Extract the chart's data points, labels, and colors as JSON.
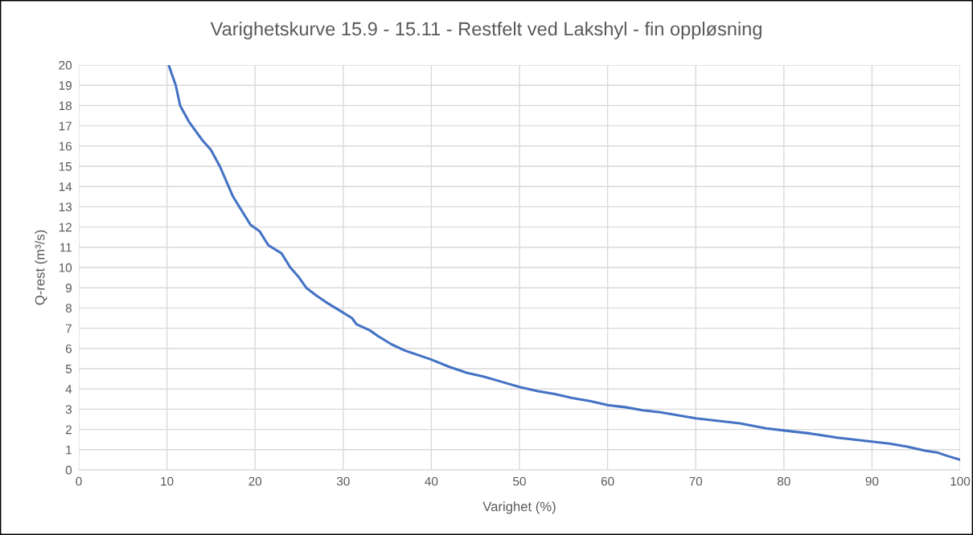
{
  "chart_data": {
    "type": "line",
    "title": "Varighetskurve 15.9 - 15.11 - Restfelt ved Lakshyl - fin oppløsning",
    "xlabel": "Varighet (%)",
    "ylabel": "Q-rest (m³/s)",
    "x": [
      10.2,
      11,
      11.5,
      12.5,
      14,
      15,
      16,
      17,
      17.5,
      18.5,
      19.5,
      20.5,
      21.5,
      23,
      24,
      25,
      25.8,
      27,
      28,
      29.5,
      31,
      31.5,
      33,
      34,
      35.5,
      37,
      39,
      40,
      42,
      44,
      46,
      48,
      50,
      52,
      54,
      56,
      58,
      60,
      62,
      64,
      66,
      68,
      70,
      72,
      75,
      78,
      80,
      83,
      86,
      88,
      90,
      92,
      94,
      95,
      96,
      97.5,
      98.5,
      100
    ],
    "series": [
      {
        "color": "#4472c4",
        "values": [
          20,
          19,
          18,
          17.2,
          16.3,
          15.8,
          15,
          14,
          13.5,
          12.8,
          12.1,
          11.8,
          11.1,
          10.7,
          10,
          9.5,
          9,
          8.6,
          8.3,
          7.9,
          7.5,
          7.2,
          6.9,
          6.6,
          6.2,
          5.9,
          5.6,
          5.45,
          5.1,
          4.8,
          4.6,
          4.35,
          4.1,
          3.9,
          3.75,
          3.55,
          3.4,
          3.2,
          3.1,
          2.95,
          2.85,
          2.7,
          2.55,
          2.45,
          2.3,
          2.05,
          1.95,
          1.8,
          1.6,
          1.5,
          1.4,
          1.3,
          1.15,
          1.05,
          0.95,
          0.85,
          0.7,
          0.5
        ]
      }
    ],
    "xlim": [
      0,
      100
    ],
    "xticks": [
      0,
      10,
      20,
      30,
      40,
      50,
      60,
      70,
      80,
      90,
      100
    ],
    "ylim": [
      0,
      20
    ],
    "yticks": [
      0,
      1,
      2,
      3,
      4,
      5,
      6,
      7,
      8,
      9,
      10,
      11,
      12,
      13,
      14,
      15,
      16,
      17,
      18,
      19,
      20
    ],
    "grid": true,
    "legend": false
  }
}
